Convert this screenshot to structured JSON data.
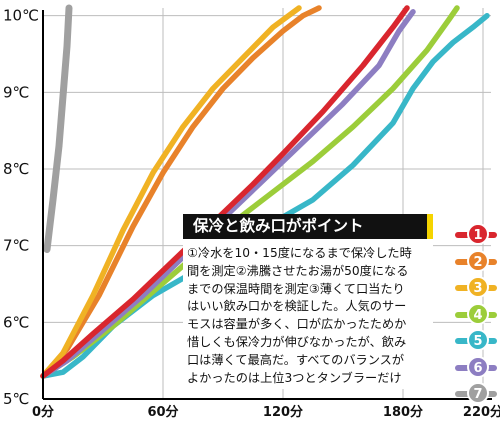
{
  "chart_data": {
    "type": "line",
    "title": "",
    "xlabel": "",
    "ylabel": "",
    "xlim": [
      0,
      224
    ],
    "ylim": [
      5,
      10.1
    ],
    "x_ticks": [
      0,
      60,
      120,
      180,
      220
    ],
    "x_tick_labels": [
      "0分",
      "60分",
      "120分",
      "180分",
      "220分"
    ],
    "y_ticks": [
      5,
      6,
      7,
      8,
      9,
      10
    ],
    "y_tick_labels": [
      "5℃",
      "6℃",
      "7℃",
      "8℃",
      "9℃",
      "10℃"
    ],
    "series": [
      {
        "name": "1",
        "color": "#d9262e",
        "points": [
          [
            0,
            5.3
          ],
          [
            10,
            5.5
          ],
          [
            25,
            5.85
          ],
          [
            45,
            6.3
          ],
          [
            65,
            6.8
          ],
          [
            85,
            7.3
          ],
          [
            105,
            7.8
          ],
          [
            120,
            8.2
          ],
          [
            140,
            8.75
          ],
          [
            160,
            9.35
          ],
          [
            175,
            9.85
          ],
          [
            182,
            10.1
          ]
        ]
      },
      {
        "name": "2",
        "color": "#e8822a",
        "points": [
          [
            0,
            5.3
          ],
          [
            12,
            5.65
          ],
          [
            28,
            6.35
          ],
          [
            45,
            7.25
          ],
          [
            60,
            7.95
          ],
          [
            75,
            8.55
          ],
          [
            90,
            9.05
          ],
          [
            105,
            9.45
          ],
          [
            120,
            9.8
          ],
          [
            130,
            10.0
          ],
          [
            138,
            10.1
          ]
        ]
      },
      {
        "name": "3",
        "color": "#f0b224",
        "points": [
          [
            0,
            5.3
          ],
          [
            10,
            5.6
          ],
          [
            25,
            6.35
          ],
          [
            40,
            7.2
          ],
          [
            55,
            7.95
          ],
          [
            70,
            8.55
          ],
          [
            85,
            9.05
          ],
          [
            100,
            9.45
          ],
          [
            115,
            9.85
          ],
          [
            128,
            10.1
          ]
        ]
      },
      {
        "name": "4",
        "color": "#9ccd3a",
        "points": [
          [
            0,
            5.3
          ],
          [
            15,
            5.55
          ],
          [
            35,
            5.95
          ],
          [
            55,
            6.4
          ],
          [
            75,
            6.85
          ],
          [
            95,
            7.3
          ],
          [
            115,
            7.7
          ],
          [
            135,
            8.1
          ],
          [
            155,
            8.55
          ],
          [
            175,
            9.05
          ],
          [
            192,
            9.55
          ],
          [
            203,
            9.95
          ],
          [
            207,
            10.1
          ]
        ]
      },
      {
        "name": "5",
        "color": "#38b7c8",
        "points": [
          [
            0,
            5.3
          ],
          [
            10,
            5.35
          ],
          [
            20,
            5.55
          ],
          [
            35,
            5.95
          ],
          [
            55,
            6.35
          ],
          [
            75,
            6.65
          ],
          [
            95,
            7.0
          ],
          [
            115,
            7.3
          ],
          [
            135,
            7.6
          ],
          [
            155,
            8.05
          ],
          [
            175,
            8.6
          ],
          [
            185,
            9.05
          ],
          [
            195,
            9.4
          ],
          [
            205,
            9.65
          ],
          [
            215,
            9.85
          ],
          [
            222,
            10.0
          ]
        ]
      },
      {
        "name": "6",
        "color": "#8d7ec2",
        "points": [
          [
            0,
            5.3
          ],
          [
            12,
            5.5
          ],
          [
            30,
            5.9
          ],
          [
            50,
            6.35
          ],
          [
            70,
            6.85
          ],
          [
            90,
            7.35
          ],
          [
            110,
            7.85
          ],
          [
            130,
            8.35
          ],
          [
            150,
            8.85
          ],
          [
            168,
            9.35
          ],
          [
            178,
            9.8
          ],
          [
            185,
            10.05
          ]
        ]
      },
      {
        "name": "7",
        "color": "#a0a0a0",
        "points": [
          [
            2,
            6.95
          ],
          [
            5,
            7.6
          ],
          [
            8,
            8.3
          ],
          [
            10,
            8.95
          ],
          [
            12,
            9.6
          ],
          [
            13,
            10.1
          ]
        ]
      }
    ]
  },
  "callout": {
    "title": "保冷と飲み口がポイント",
    "lines": [
      "①冷水を10・15度になるまで保冷した時",
      "間を測定②沸騰させたお湯が50度になる",
      "までの保温時間を測定③薄くて口当たり",
      "はいい飲み口かを検証した。人気のサー",
      "モスは容量が多く、口が広かったためか",
      "惜しくも保冷力が伸びなかったが、飲み",
      "口は薄くて最高だ。すべてのバランスが",
      "よかったのは上位3つとタンブラーだけ"
    ]
  },
  "legend": [
    {
      "number": "1",
      "color": "#d9262e"
    },
    {
      "number": "2",
      "color": "#e8822a"
    },
    {
      "number": "3",
      "color": "#f0b224"
    },
    {
      "number": "4",
      "color": "#9ccd3a"
    },
    {
      "number": "5",
      "color": "#38b7c8"
    },
    {
      "number": "6",
      "color": "#8d7ec2"
    },
    {
      "number": "7",
      "color": "#a0a0a0"
    }
  ]
}
